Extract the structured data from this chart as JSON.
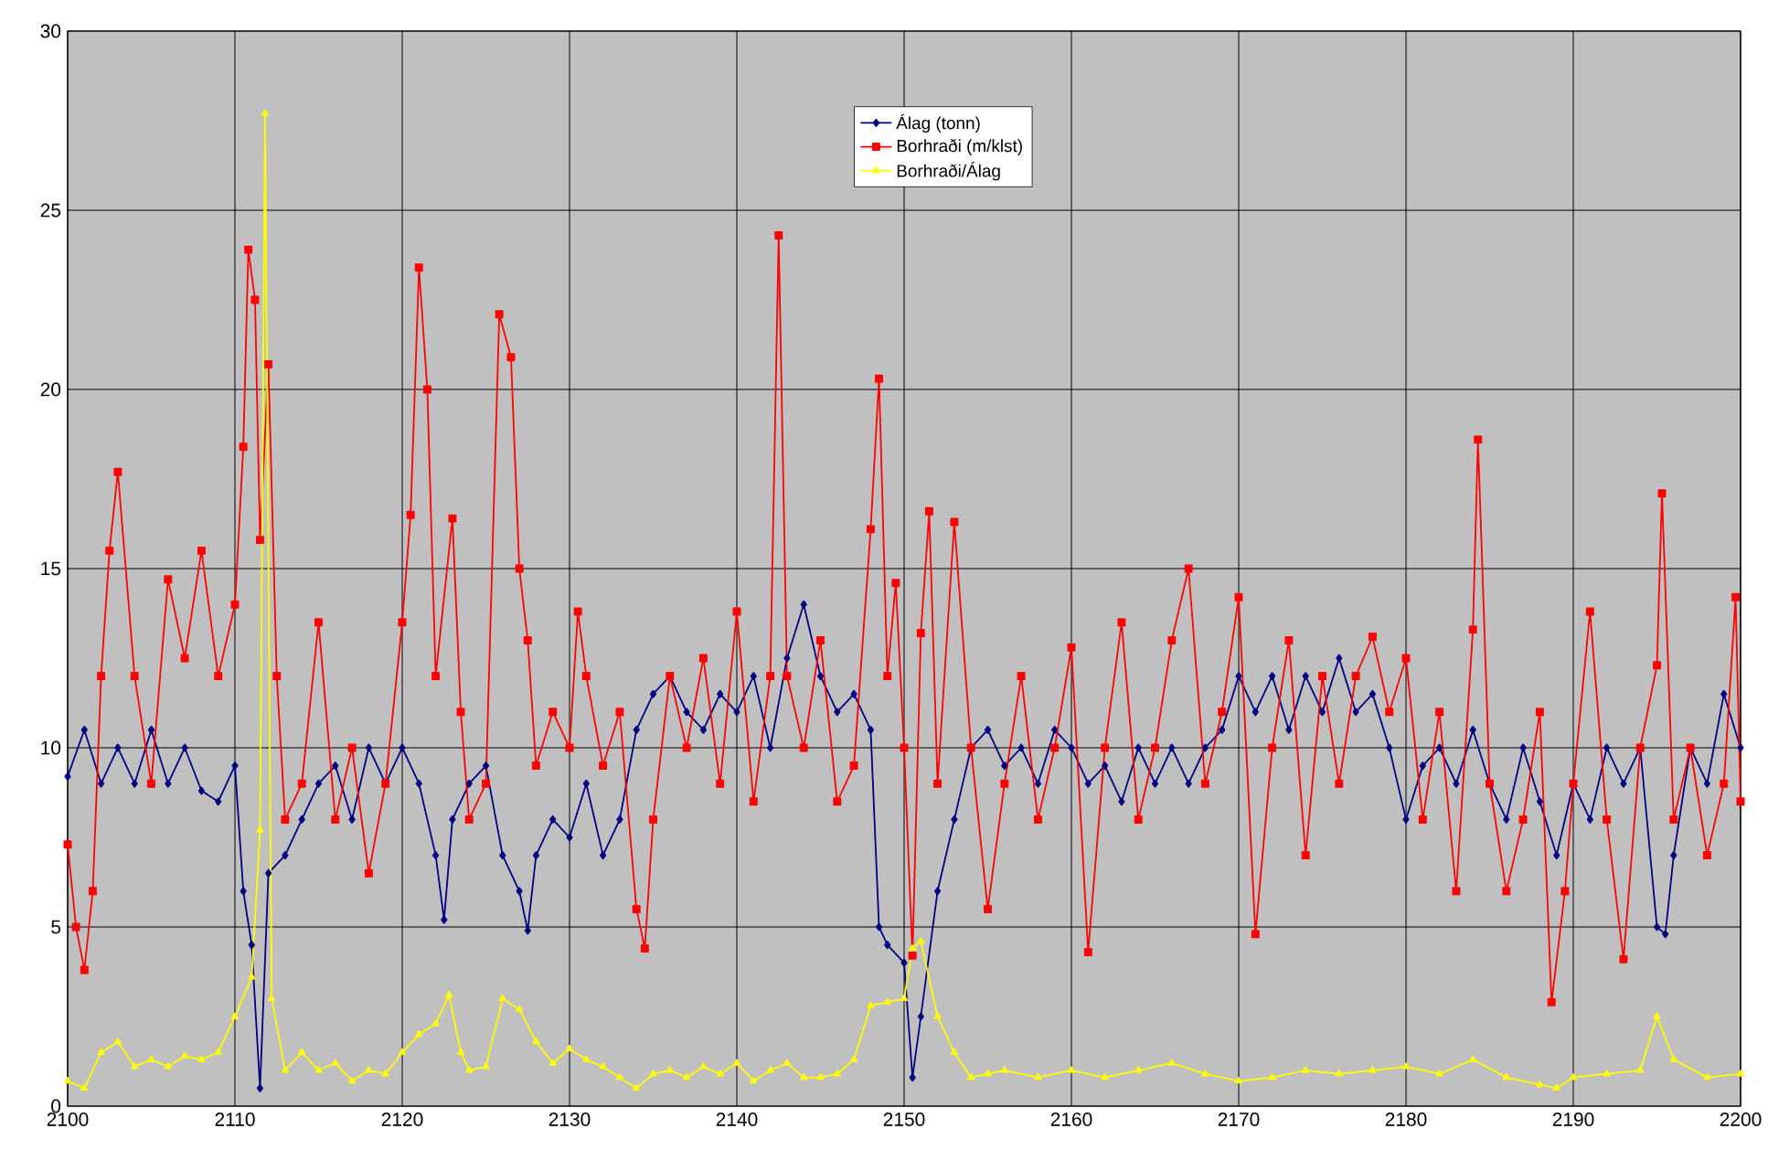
{
  "chart_data": {
    "type": "line",
    "xlim": [
      2100,
      2200
    ],
    "xticks": [
      2100,
      2110,
      2120,
      2130,
      2140,
      2150,
      2160,
      2170,
      2180,
      2190,
      2200
    ],
    "ylim": [
      0,
      30
    ],
    "yticks": [
      0,
      5,
      10,
      15,
      20,
      25,
      30
    ],
    "grid": true,
    "legend": "top",
    "series": [
      {
        "name": "Álag (tonn)",
        "color": "#000080",
        "marker": "diamond",
        "x": [
          2100,
          2101,
          2102,
          2103,
          2104,
          2105,
          2106,
          2107,
          2108,
          2109,
          2110,
          2110.5,
          2111,
          2111.5,
          2112,
          2113,
          2114,
          2115,
          2116,
          2117,
          2118,
          2119,
          2120,
          2121,
          2122,
          2122.5,
          2123,
          2124,
          2125,
          2126,
          2127,
          2127.5,
          2128,
          2129,
          2130,
          2131,
          2132,
          2133,
          2134,
          2135,
          2136,
          2137,
          2138,
          2139,
          2140,
          2141,
          2142,
          2143,
          2144,
          2145,
          2146,
          2147,
          2148,
          2148.5,
          2149,
          2150,
          2150.5,
          2151,
          2152,
          2153,
          2154,
          2155,
          2156,
          2157,
          2158,
          2159,
          2160,
          2161,
          2162,
          2163,
          2164,
          2165,
          2166,
          2167,
          2168,
          2169,
          2170,
          2171,
          2172,
          2173,
          2174,
          2175,
          2176,
          2177,
          2178,
          2179,
          2180,
          2181,
          2182,
          2183,
          2184,
          2185,
          2186,
          2187,
          2188,
          2189,
          2190,
          2191,
          2192,
          2193,
          2194,
          2195,
          2195.5,
          2196,
          2197,
          2198,
          2199,
          2200
        ],
        "values": [
          9.2,
          10.5,
          9,
          10,
          9,
          10.5,
          9,
          10,
          8.8,
          8.5,
          9.5,
          6,
          4.5,
          0.5,
          6.5,
          7,
          8,
          9,
          9.5,
          8,
          10,
          9,
          10,
          9,
          7,
          5.2,
          8,
          9,
          9.5,
          7,
          6,
          4.9,
          7,
          8,
          7.5,
          9,
          7,
          8,
          10.5,
          11.5,
          12,
          11,
          10.5,
          11.5,
          11,
          12,
          10,
          12.5,
          14,
          12,
          11,
          11.5,
          10.5,
          5,
          4.5,
          4,
          0.8,
          2.5,
          6,
          8,
          10,
          10.5,
          9.5,
          10,
          9,
          10.5,
          10,
          9,
          9.5,
          8.5,
          10,
          9,
          10,
          9,
          10,
          10.5,
          12,
          11,
          12,
          10.5,
          12,
          11,
          12.5,
          11,
          11.5,
          10,
          8,
          9.5,
          10,
          9,
          10.5,
          9,
          8,
          10,
          8.5,
          7,
          9,
          8,
          10,
          9,
          10,
          5,
          4.8,
          7,
          10,
          9,
          11.5,
          10
        ]
      },
      {
        "name": "Borhraði (m/klst)",
        "color": "#ff0000",
        "marker": "square",
        "x": [
          2100,
          2100.5,
          2101,
          2101.5,
          2102,
          2102.5,
          2103,
          2104,
          2105,
          2106,
          2107,
          2108,
          2109,
          2110,
          2110.5,
          2110.8,
          2111.2,
          2111.5,
          2112,
          2112.5,
          2113,
          2114,
          2115,
          2116,
          2117,
          2118,
          2119,
          2120,
          2120.5,
          2121,
          2121.5,
          2122,
          2123,
          2123.5,
          2124,
          2125,
          2125.8,
          2126.5,
          2127,
          2127.5,
          2128,
          2129,
          2130,
          2130.5,
          2131,
          2132,
          2133,
          2134,
          2134.5,
          2135,
          2136,
          2137,
          2138,
          2139,
          2140,
          2141,
          2142,
          2142.5,
          2143,
          2144,
          2145,
          2146,
          2147,
          2148,
          2148.5,
          2149,
          2149.5,
          2150,
          2150.5,
          2151,
          2151.5,
          2152,
          2153,
          2154,
          2155,
          2156,
          2157,
          2158,
          2159,
          2160,
          2161,
          2162,
          2163,
          2164,
          2165,
          2166,
          2167,
          2168,
          2169,
          2170,
          2171,
          2172,
          2173,
          2174,
          2175,
          2176,
          2177,
          2178,
          2179,
          2180,
          2181,
          2182,
          2183,
          2184,
          2184.3,
          2185,
          2186,
          2187,
          2188,
          2188.7,
          2189.5,
          2190,
          2191,
          2192,
          2193,
          2194,
          2195,
          2195.3,
          2196,
          2197,
          2198,
          2199,
          2199.7,
          2200
        ],
        "values": [
          7.3,
          5,
          3.8,
          6,
          12,
          15.5,
          17.7,
          12,
          9,
          14.7,
          12.5,
          15.5,
          12,
          14,
          18.4,
          23.9,
          22.5,
          15.8,
          20.7,
          12,
          8,
          9,
          13.5,
          8,
          10,
          6.5,
          9,
          13.5,
          16.5,
          23.4,
          20,
          12,
          16.4,
          11,
          8,
          9,
          22.1,
          20.9,
          15,
          13,
          9.5,
          11,
          10,
          13.8,
          12,
          9.5,
          11,
          5.5,
          4.4,
          8,
          12,
          10,
          12.5,
          9,
          13.8,
          8.5,
          12,
          24.3,
          12,
          10,
          13,
          8.5,
          9.5,
          16.1,
          20.3,
          12,
          14.6,
          10,
          4.2,
          13.2,
          16.6,
          9,
          16.3,
          10,
          5.5,
          9,
          12,
          8,
          10,
          12.8,
          4.3,
          10,
          13.5,
          8,
          10,
          13,
          15,
          9,
          11,
          14.2,
          4.8,
          10,
          13,
          7,
          12,
          9,
          12,
          13.1,
          11,
          12.5,
          8,
          11,
          6,
          13.3,
          18.6,
          9,
          6,
          8,
          11,
          2.9,
          6,
          9,
          13.8,
          8,
          4.1,
          10,
          12.3,
          17.1,
          8,
          10,
          7,
          9,
          14.2,
          8.5
        ]
      },
      {
        "name": "Borhraði/Álag",
        "color": "#ffff00",
        "marker": "triangle",
        "x": [
          2100,
          2101,
          2102,
          2103,
          2104,
          2105,
          2106,
          2107,
          2108,
          2109,
          2110,
          2111,
          2111.5,
          2111.8,
          2112.2,
          2113,
          2114,
          2115,
          2116,
          2117,
          2118,
          2119,
          2120,
          2121,
          2122,
          2122.8,
          2123.5,
          2124,
          2125,
          2126,
          2127,
          2128,
          2129,
          2130,
          2131,
          2132,
          2133,
          2134,
          2135,
          2136,
          2137,
          2138,
          2139,
          2140,
          2141,
          2142,
          2143,
          2144,
          2145,
          2146,
          2147,
          2148,
          2149,
          2150,
          2150.5,
          2151,
          2152,
          2153,
          2154,
          2155,
          2156,
          2158,
          2160,
          2162,
          2164,
          2166,
          2168,
          2170,
          2172,
          2174,
          2176,
          2178,
          2180,
          2182,
          2184,
          2186,
          2188,
          2189,
          2190,
          2192,
          2194,
          2195,
          2196,
          2198,
          2200
        ],
        "values": [
          0.7,
          0.5,
          1.5,
          1.8,
          1.1,
          1.3,
          1.1,
          1.4,
          1.3,
          1.5,
          2.5,
          3.6,
          7.7,
          27.7,
          3,
          1,
          1.5,
          1,
          1.2,
          0.7,
          1,
          0.9,
          1.5,
          2,
          2.3,
          3.1,
          1.5,
          1,
          1.1,
          3,
          2.7,
          1.8,
          1.2,
          1.6,
          1.3,
          1.1,
          0.8,
          0.5,
          0.9,
          1,
          0.8,
          1.1,
          0.9,
          1.2,
          0.7,
          1,
          1.2,
          0.8,
          0.8,
          0.9,
          1.3,
          2.8,
          2.9,
          3,
          4.4,
          4.6,
          2.5,
          1.5,
          0.8,
          0.9,
          1,
          0.8,
          1,
          0.8,
          1,
          1.2,
          0.9,
          0.7,
          0.8,
          1,
          0.9,
          1,
          1.1,
          0.9,
          1.3,
          0.8,
          0.6,
          0.5,
          0.8,
          0.9,
          1,
          2.5,
          1.3,
          0.8,
          0.9
        ]
      }
    ]
  }
}
